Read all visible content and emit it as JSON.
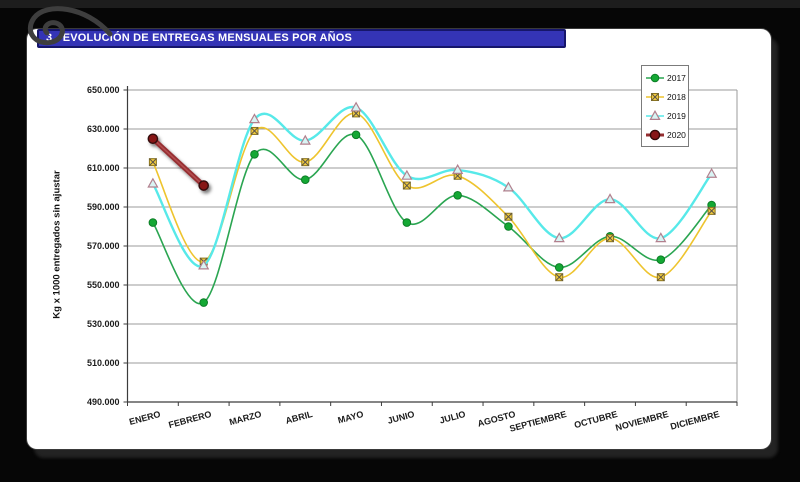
{
  "page": {
    "title": "3.- EVOLUCIÓN DE ENTREGAS MENSUALES POR AÑOS",
    "banner_bg": "#3434b6",
    "banner_border": "#16166b"
  },
  "chart_data": {
    "type": "line",
    "title": "",
    "xlabel": "",
    "ylabel": "Kg x 1000 entregados sin ajustar",
    "ylim": [
      490,
      650
    ],
    "ytick_step": 20,
    "ytick_labels": [
      "490.000",
      "510.000",
      "530.000",
      "550.000",
      "570.000",
      "590.000",
      "610.000",
      "630.000",
      "650.000"
    ],
    "grid": true,
    "legend_position": "top-right",
    "categories": [
      "ENERO",
      "FEBRERO",
      "MARZO",
      "ABRIL",
      "MAYO",
      "JUNIO",
      "JULIO",
      "AGOSTO",
      "SEPTIEMBRE",
      "OCTUBRE",
      "NOVIEMBRE",
      "DICIEMBRE"
    ],
    "series": [
      {
        "name": "2017",
        "color": "#2aa551",
        "marker": "circle",
        "marker_fill": "#14a834",
        "marker_stroke": "#0c7d26",
        "line_width": 1.6,
        "values": [
          582,
          541,
          617,
          604,
          627,
          582,
          596,
          580,
          559,
          575,
          563,
          591
        ]
      },
      {
        "name": "2018",
        "color": "#eec42e",
        "marker": "x-square",
        "marker_fill": "#f0ca3e",
        "marker_stroke": "#8a7420",
        "line_width": 1.6,
        "values": [
          613,
          562,
          629,
          613,
          638,
          601,
          606,
          585,
          554,
          574,
          554,
          588
        ]
      },
      {
        "name": "2019",
        "color": "#57e9e9",
        "marker": "triangle",
        "marker_fill": "#d9f4f4",
        "marker_stroke": "#b2808e",
        "line_width": 2.4,
        "values": [
          602,
          560,
          635,
          624,
          641,
          606,
          609,
          600,
          574,
          594,
          574,
          607
        ]
      },
      {
        "name": "2020",
        "color": "#952e30",
        "marker": "dark-circle",
        "marker_fill": "#871517",
        "marker_stroke": "#330808",
        "line_width": 5,
        "shadow": true,
        "values": [
          625,
          601,
          null,
          null,
          null,
          null,
          null,
          null,
          null,
          null,
          null,
          null
        ]
      }
    ]
  }
}
